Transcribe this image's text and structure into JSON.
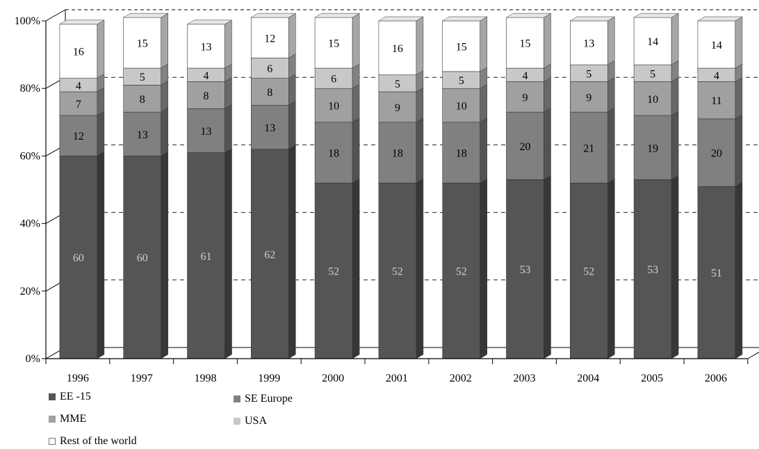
{
  "chart_data": {
    "type": "bar",
    "stacked": true,
    "percent": true,
    "three_d": true,
    "categories": [
      "1996",
      "1997",
      "1998",
      "1999",
      "2000",
      "2001",
      "2002",
      "2003",
      "2004",
      "2005",
      "2006"
    ],
    "series": [
      {
        "name": "EE -15",
        "color": "#555555",
        "label_color": "#d0d0d0",
        "values": [
          60,
          60,
          61,
          62,
          52,
          52,
          52,
          53,
          52,
          53,
          51
        ]
      },
      {
        "name": "SE Europe",
        "color": "#808080",
        "label_color": "#000000",
        "values": [
          12,
          13,
          13,
          13,
          18,
          18,
          18,
          20,
          21,
          19,
          20
        ]
      },
      {
        "name": "MME",
        "color": "#a0a0a0",
        "label_color": "#000000",
        "values": [
          7,
          8,
          8,
          8,
          10,
          9,
          10,
          9,
          9,
          10,
          11
        ]
      },
      {
        "name": "USA",
        "color": "#c8c8c8",
        "label_color": "#000000",
        "values": [
          4,
          5,
          4,
          6,
          6,
          5,
          5,
          4,
          5,
          5,
          4
        ]
      },
      {
        "name": "Rest of the world",
        "color": "#ffffff",
        "label_color": "#000000",
        "values": [
          16,
          15,
          13,
          12,
          15,
          16,
          15,
          15,
          13,
          14,
          14
        ]
      }
    ],
    "y_ticks": [
      "0%",
      "20%",
      "40%",
      "60%",
      "80%",
      "100%"
    ],
    "ylim": [
      0,
      100
    ],
    "grid": "dashed",
    "legend_position": "bottom-left"
  }
}
